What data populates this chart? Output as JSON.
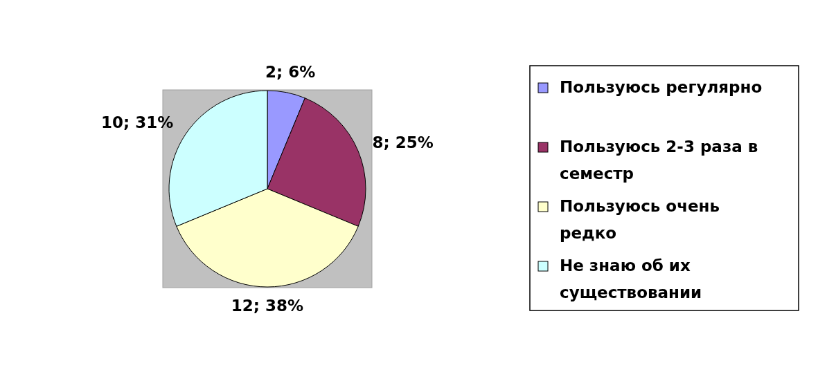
{
  "chart_data": {
    "type": "pie",
    "categories": [
      "Пользуюсь регулярно",
      "Пользуюсь 2-3 раза в семестр",
      "Пользуюсь очень редко",
      "Не знаю об их существовании"
    ],
    "values": [
      2,
      8,
      12,
      10
    ],
    "colors": [
      "#9999ff",
      "#993366",
      "#ffffcc",
      "#ccffff"
    ],
    "value_labels": [
      "2; 6%",
      "8; 25%",
      "12; 38%",
      "10; 31%"
    ],
    "legend": "right"
  }
}
